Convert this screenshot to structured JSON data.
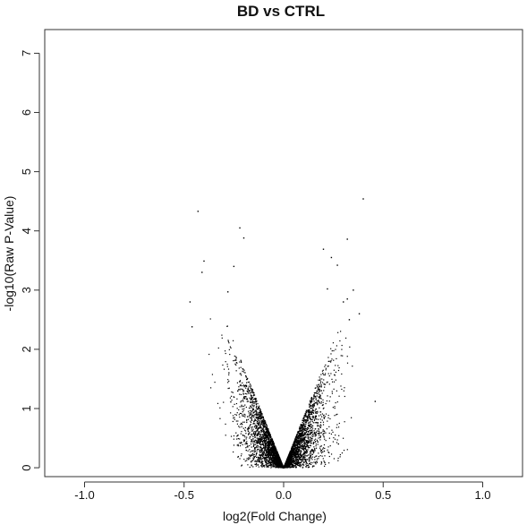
{
  "chart_data": {
    "type": "scatter",
    "title": "BD vs CTRL",
    "xlabel": "log2(Fold Change)",
    "ylabel": "-log10(Raw P-Value)",
    "xlim": [
      -1.2,
      1.2
    ],
    "ylim": [
      -0.15,
      7.4
    ],
    "x_ticks": [
      "-1.0",
      "-0.5",
      "0.0",
      "0.5",
      "1.0"
    ],
    "y_ticks": [
      "0",
      "1",
      "2",
      "3",
      "4",
      "5",
      "6",
      "7"
    ],
    "grid": false,
    "legend": "none",
    "point_color": "#000000",
    "series": [
      {
        "outliers": [
          {
            "x": 0.4,
            "y": 4.54
          },
          {
            "x": -0.43,
            "y": 4.33
          },
          {
            "x": -0.22,
            "y": 4.05
          },
          {
            "x": -0.2,
            "y": 3.88
          },
          {
            "x": 0.32,
            "y": 3.86
          },
          {
            "x": 0.2,
            "y": 3.69
          },
          {
            "x": -0.4,
            "y": 3.49
          },
          {
            "x": -0.41,
            "y": 3.3
          },
          {
            "x": -0.25,
            "y": 3.4
          },
          {
            "x": 0.27,
            "y": 3.42
          },
          {
            "x": 0.24,
            "y": 3.55
          },
          {
            "x": 0.35,
            "y": 3.0
          },
          {
            "x": 0.32,
            "y": 2.85
          },
          {
            "x": 0.3,
            "y": 2.8
          },
          {
            "x": -0.47,
            "y": 2.8
          },
          {
            "x": 0.38,
            "y": 2.6
          },
          {
            "x": 0.33,
            "y": 2.5
          },
          {
            "x": -0.46,
            "y": 2.38
          },
          {
            "x": 0.46,
            "y": 1.12
          },
          {
            "x": -0.28,
            "y": 2.97
          },
          {
            "x": 0.22,
            "y": 3.02
          }
        ],
        "cloud": {
          "points": 4500,
          "slope_y_per_abs_log2fc": 8.5,
          "max_y": 2.6
        }
      }
    ]
  }
}
